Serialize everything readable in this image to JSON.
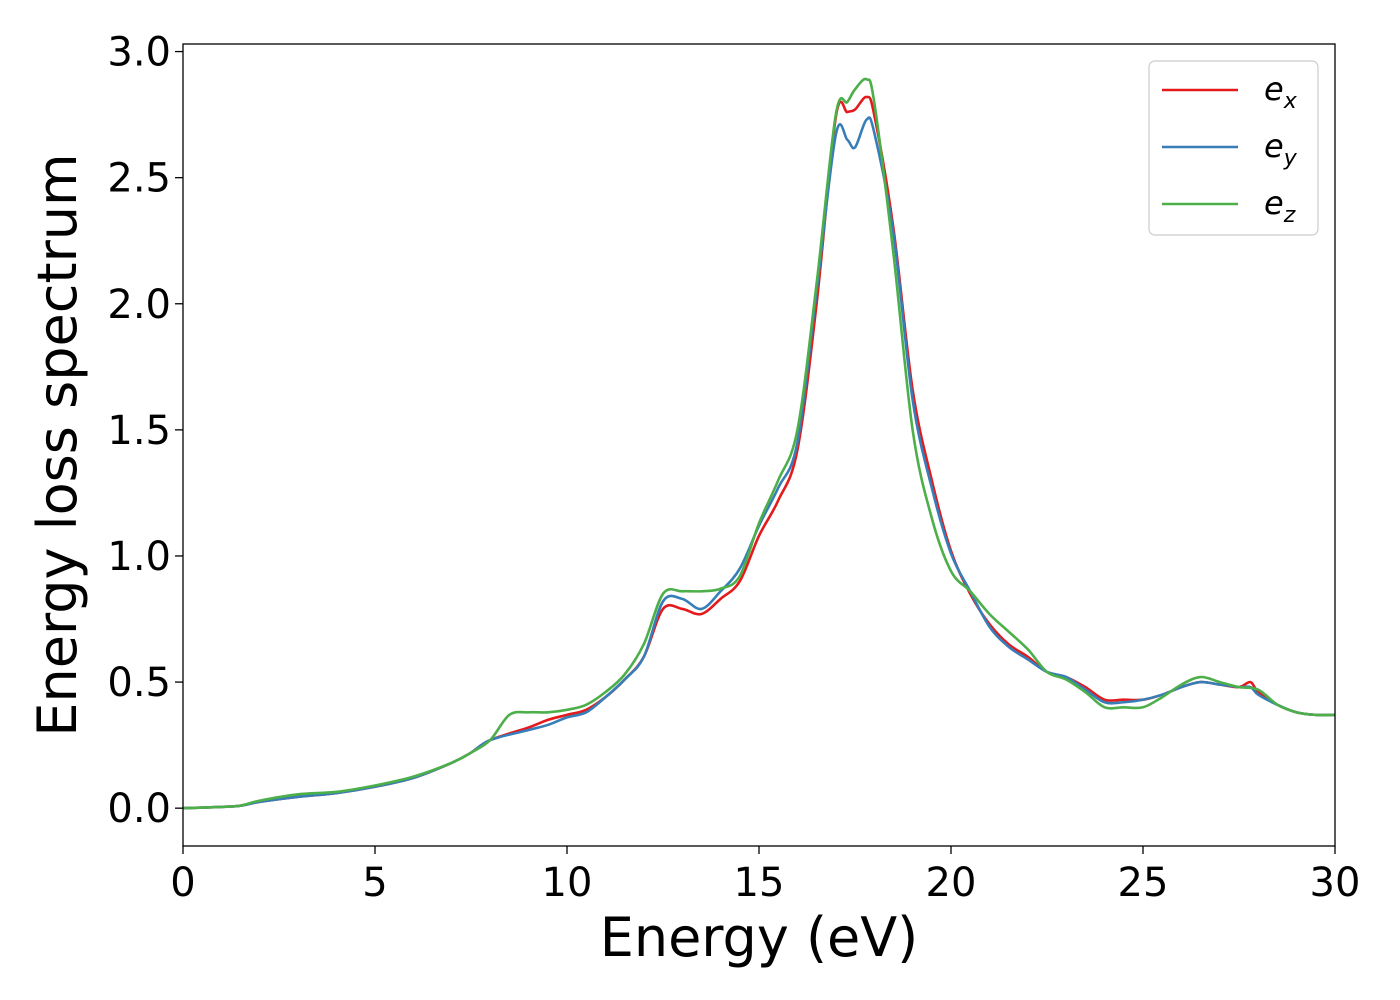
{
  "chart_data": {
    "type": "line",
    "xlabel": "Energy (eV)",
    "ylabel": "Energy loss spectrum",
    "xlim": [
      0,
      30
    ],
    "ylim": [
      -0.15,
      3.03
    ],
    "x_ticks": [
      0,
      5,
      10,
      15,
      20,
      25,
      30
    ],
    "y_ticks": [
      0.0,
      0.5,
      1.0,
      1.5,
      2.0,
      2.5,
      3.0
    ],
    "x_tick_labels": [
      "0",
      "5",
      "10",
      "15",
      "20",
      "25",
      "30"
    ],
    "y_tick_labels": [
      "0.0",
      "0.5",
      "1.0",
      "1.5",
      "2.0",
      "2.5",
      "3.0"
    ],
    "grid": false,
    "legend_position": "top-right",
    "series": [
      {
        "name": "e_x",
        "label_base": "e",
        "label_sub": "x",
        "color": "#e41a1c",
        "x": [
          0,
          1,
          1.5,
          2,
          3,
          4,
          5,
          6,
          7,
          7.5,
          8,
          9,
          9.5,
          10,
          10.5,
          11,
          11.5,
          12,
          12.5,
          13,
          13.5,
          14,
          14.5,
          15,
          15.5,
          16,
          16.5,
          17,
          17.3,
          17.5,
          17.8,
          18,
          18.5,
          19,
          19.5,
          20,
          20.5,
          21,
          21.5,
          22,
          22.5,
          23,
          23.5,
          24,
          24.5,
          25,
          25.5,
          26,
          26.5,
          27,
          27.5,
          27.8,
          28,
          28.5,
          29,
          29.5,
          30
        ],
        "y": [
          0,
          0.005,
          0.01,
          0.025,
          0.045,
          0.06,
          0.085,
          0.12,
          0.18,
          0.22,
          0.27,
          0.32,
          0.35,
          0.37,
          0.39,
          0.44,
          0.51,
          0.6,
          0.79,
          0.79,
          0.77,
          0.83,
          0.9,
          1.08,
          1.22,
          1.42,
          2.0,
          2.74,
          2.76,
          2.77,
          2.82,
          2.75,
          2.3,
          1.66,
          1.3,
          1.02,
          0.85,
          0.73,
          0.65,
          0.6,
          0.54,
          0.52,
          0.48,
          0.43,
          0.43,
          0.43,
          0.45,
          0.48,
          0.5,
          0.49,
          0.48,
          0.5,
          0.46,
          0.41,
          0.38,
          0.37,
          0.37
        ]
      },
      {
        "name": "e_y",
        "label_base": "e",
        "label_sub": "y",
        "color": "#377eb8",
        "x": [
          0,
          1,
          1.5,
          2,
          3,
          4,
          5,
          6,
          7,
          7.5,
          8,
          9,
          9.5,
          10,
          10.5,
          11,
          11.5,
          12,
          12.5,
          13,
          13.5,
          14,
          14.5,
          15,
          15.5,
          16,
          16.5,
          17,
          17.3,
          17.5,
          17.8,
          18,
          18.5,
          19,
          19.5,
          20,
          20.5,
          21,
          21.5,
          22,
          22.5,
          23,
          23.5,
          24,
          24.5,
          25,
          25.5,
          26,
          26.5,
          27,
          27.5,
          27.8,
          28,
          28.5,
          29,
          29.5,
          30
        ],
        "y": [
          0,
          0.005,
          0.01,
          0.025,
          0.045,
          0.06,
          0.085,
          0.12,
          0.18,
          0.22,
          0.27,
          0.31,
          0.33,
          0.36,
          0.38,
          0.44,
          0.51,
          0.6,
          0.82,
          0.83,
          0.79,
          0.86,
          0.95,
          1.12,
          1.27,
          1.45,
          2.05,
          2.67,
          2.65,
          2.62,
          2.73,
          2.68,
          2.28,
          1.62,
          1.27,
          1.01,
          0.86,
          0.72,
          0.64,
          0.59,
          0.54,
          0.52,
          0.47,
          0.42,
          0.42,
          0.43,
          0.45,
          0.48,
          0.5,
          0.49,
          0.48,
          0.48,
          0.45,
          0.41,
          0.38,
          0.37,
          0.37
        ]
      },
      {
        "name": "e_z",
        "label_base": "e",
        "label_sub": "z",
        "color": "#4daf4a",
        "x": [
          0,
          1,
          1.5,
          2,
          3,
          4,
          5,
          6,
          7,
          7.5,
          8,
          8.5,
          9,
          9.5,
          10,
          10.5,
          11,
          11.5,
          12,
          12.5,
          13,
          13.5,
          14,
          14.5,
          15,
          15.5,
          16,
          16.5,
          17,
          17.3,
          17.5,
          17.8,
          18,
          18.5,
          19,
          19.5,
          20,
          20.5,
          21,
          21.5,
          22,
          22.5,
          23,
          23.5,
          24,
          24.5,
          25,
          25.5,
          26,
          26.5,
          27,
          27.5,
          28,
          28.5,
          29,
          29.5,
          30
        ],
        "y": [
          0,
          0.005,
          0.01,
          0.03,
          0.055,
          0.065,
          0.09,
          0.125,
          0.18,
          0.22,
          0.27,
          0.37,
          0.38,
          0.38,
          0.39,
          0.41,
          0.46,
          0.53,
          0.65,
          0.85,
          0.86,
          0.86,
          0.87,
          0.92,
          1.13,
          1.3,
          1.5,
          2.08,
          2.75,
          2.8,
          2.85,
          2.89,
          2.8,
          2.2,
          1.5,
          1.15,
          0.94,
          0.86,
          0.77,
          0.7,
          0.63,
          0.54,
          0.51,
          0.46,
          0.4,
          0.4,
          0.4,
          0.44,
          0.49,
          0.52,
          0.5,
          0.48,
          0.47,
          0.41,
          0.38,
          0.37,
          0.37
        ]
      }
    ]
  }
}
